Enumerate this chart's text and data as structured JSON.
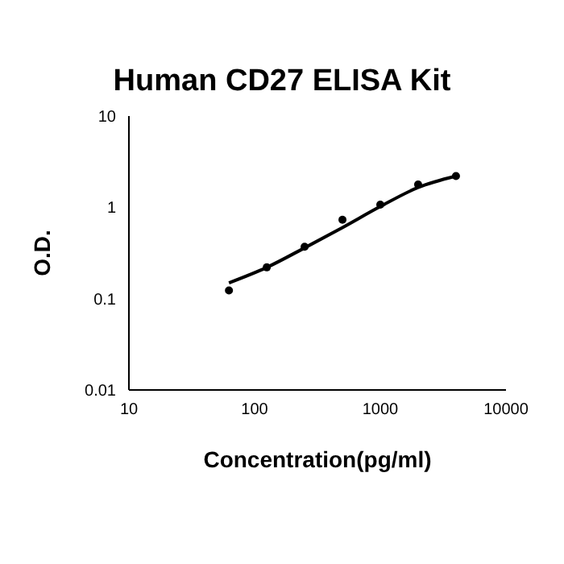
{
  "chart_data": {
    "type": "scatter",
    "title": "Human CD27 ELISA Kit",
    "xlabel": "Concentration(pg/ml)",
    "ylabel": "O.D.",
    "log": "xy",
    "grid": false,
    "xlim": [
      10,
      10000
    ],
    "xticks": [
      10,
      100,
      1000,
      10000
    ],
    "ylim": [
      0.01,
      10
    ],
    "yticks": [
      0.01,
      0.1,
      1,
      10
    ],
    "x": [
      62.5,
      125,
      250,
      500,
      1000,
      2000,
      4000
    ],
    "series": [
      {
        "color": "#000000",
        "marker": "circle",
        "values": [
          0.123,
          0.22,
          0.37,
          0.73,
          1.07,
          1.78,
          2.2
        ]
      },
      {
        "type": "line",
        "color": "#000000",
        "marker": "none",
        "line_style": "solid",
        "x": [
          62.5,
          125,
          250,
          500,
          1000,
          2000,
          4000
        ],
        "values": [
          0.149,
          0.22,
          0.36,
          0.6,
          1.02,
          1.65,
          2.2
        ]
      }
    ]
  }
}
